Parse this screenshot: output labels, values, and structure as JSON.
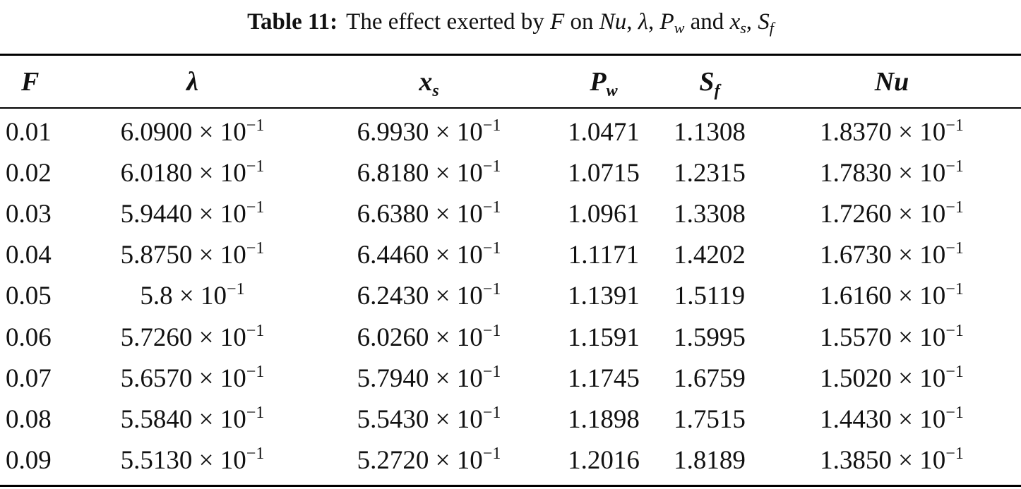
{
  "caption": {
    "label": "Table 11:",
    "text_before": "The effect exerted by",
    "var_f": "F",
    "on": "on",
    "var_nu": "Nu",
    "comma1": ",",
    "var_lambda": "λ",
    "comma2": ",",
    "var_p": "P",
    "var_p_sub": "w",
    "and": "and",
    "var_x": "x",
    "var_x_sub": "s",
    "comma3": ",",
    "var_s": "S",
    "var_s_sub": "f"
  },
  "table": {
    "headers": [
      {
        "main": "F",
        "sub": ""
      },
      {
        "main": "λ",
        "sub": ""
      },
      {
        "main": "x",
        "sub": "s"
      },
      {
        "main": "P",
        "sub": "w"
      },
      {
        "main": "S",
        "sub": "f"
      },
      {
        "main": "Nu",
        "sub": ""
      }
    ],
    "times": "×",
    "rows": [
      {
        "F": "0.01",
        "lambda": {
          "m": "6.0900",
          "e": "−1"
        },
        "xs": {
          "m": "6.9930",
          "e": "−1"
        },
        "Pw": "1.0471",
        "Sf": "1.1308",
        "Nu": {
          "m": "1.8370",
          "e": "−1"
        }
      },
      {
        "F": "0.02",
        "lambda": {
          "m": "6.0180",
          "e": "−1"
        },
        "xs": {
          "m": "6.8180",
          "e": "−1"
        },
        "Pw": "1.0715",
        "Sf": "1.2315",
        "Nu": {
          "m": "1.7830",
          "e": "−1"
        }
      },
      {
        "F": "0.03",
        "lambda": {
          "m": "5.9440",
          "e": "−1"
        },
        "xs": {
          "m": "6.6380",
          "e": "−1"
        },
        "Pw": "1.0961",
        "Sf": "1.3308",
        "Nu": {
          "m": "1.7260",
          "e": "−1"
        }
      },
      {
        "F": "0.04",
        "lambda": {
          "m": "5.8750",
          "e": "−1"
        },
        "xs": {
          "m": "6.4460",
          "e": "−1"
        },
        "Pw": "1.1171",
        "Sf": "1.4202",
        "Nu": {
          "m": "1.6730",
          "e": "−1"
        }
      },
      {
        "F": "0.05",
        "lambda": {
          "m": "5.8",
          "e": "−1"
        },
        "xs": {
          "m": "6.2430",
          "e": "−1"
        },
        "Pw": "1.1391",
        "Sf": "1.5119",
        "Nu": {
          "m": "1.6160",
          "e": "−1"
        }
      },
      {
        "F": "0.06",
        "lambda": {
          "m": "5.7260",
          "e": "−1"
        },
        "xs": {
          "m": "6.0260",
          "e": "−1"
        },
        "Pw": "1.1591",
        "Sf": "1.5995",
        "Nu": {
          "m": "1.5570",
          "e": "−1"
        }
      },
      {
        "F": "0.07",
        "lambda": {
          "m": "5.6570",
          "e": "−1"
        },
        "xs": {
          "m": "5.7940",
          "e": "−1"
        },
        "Pw": "1.1745",
        "Sf": "1.6759",
        "Nu": {
          "m": "1.5020",
          "e": "−1"
        }
      },
      {
        "F": "0.08",
        "lambda": {
          "m": "5.5840",
          "e": "−1"
        },
        "xs": {
          "m": "5.5430",
          "e": "−1"
        },
        "Pw": "1.1898",
        "Sf": "1.7515",
        "Nu": {
          "m": "1.4430",
          "e": "−1"
        }
      },
      {
        "F": "0.09",
        "lambda": {
          "m": "5.5130",
          "e": "−1"
        },
        "xs": {
          "m": "5.2720",
          "e": "−1"
        },
        "Pw": "1.2016",
        "Sf": "1.8189",
        "Nu": {
          "m": "1.3850",
          "e": "−1"
        }
      }
    ]
  }
}
